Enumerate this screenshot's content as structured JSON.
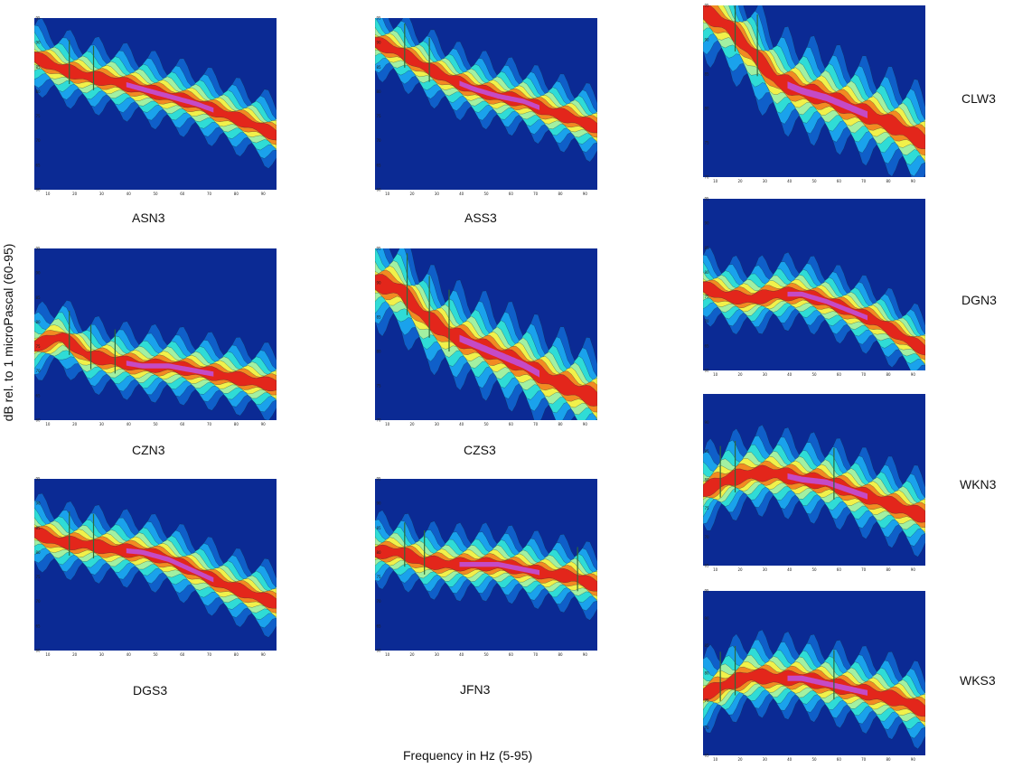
{
  "figure": {
    "ylabel": "dB rel. to 1 microPascal (60-95)",
    "xlabel": "Frequency in Hz (5-95)"
  },
  "chart_data": [
    {
      "type": "heatmap",
      "station": "ASN3",
      "x": [
        10,
        20,
        30,
        40,
        50,
        60,
        70,
        80,
        90
      ],
      "yticks": [
        60,
        65,
        70,
        75,
        80,
        85,
        90,
        95
      ],
      "xlim": [
        5,
        95
      ],
      "ylim": [
        60,
        95
      ],
      "series": [
        {
          "name": "ASN3",
          "x": [
            5,
            15,
            25,
            35,
            45,
            55,
            65,
            75,
            85,
            95
          ],
          "values": [
            87,
            84.5,
            83,
            82,
            80.5,
            79,
            77.5,
            75.5,
            73.5,
            71
          ]
        }
      ],
      "peaks": [
        18,
        27
      ]
    },
    {
      "type": "heatmap",
      "station": "ASS3",
      "x": [
        10,
        20,
        30,
        40,
        50,
        60,
        70,
        80,
        90
      ],
      "yticks": [
        60,
        65,
        70,
        75,
        80,
        85,
        90,
        95
      ],
      "xlim": [
        5,
        95
      ],
      "ylim": [
        60,
        95
      ],
      "series": [
        {
          "name": "ASS3",
          "x": [
            5,
            15,
            25,
            35,
            45,
            55,
            65,
            75,
            85,
            95
          ],
          "values": [
            90,
            88,
            85,
            82.5,
            80.5,
            79,
            78,
            76,
            74.5,
            72.5
          ]
        }
      ],
      "peaks": [
        17,
        27
      ]
    },
    {
      "type": "heatmap",
      "station": "CLW3",
      "x": [
        10,
        20,
        30,
        40,
        50,
        60,
        70,
        80,
        90
      ],
      "yticks": [
        70,
        75,
        80,
        85,
        90,
        95
      ],
      "xlim": [
        5,
        95
      ],
      "ylim": [
        70,
        95
      ],
      "series": [
        {
          "name": "CLW3",
          "x": [
            5,
            15,
            25,
            35,
            45,
            55,
            65,
            75,
            85,
            95
          ],
          "values": [
            94,
            92,
            88,
            84,
            82.5,
            81.5,
            80,
            78.5,
            77,
            75
          ]
        }
      ],
      "peaks": [
        18,
        27
      ]
    },
    {
      "type": "heatmap",
      "station": "CZN3",
      "x": [
        10,
        20,
        30,
        40,
        50,
        60,
        70,
        80,
        90
      ],
      "yticks": [
        60,
        65,
        70,
        75,
        80,
        85,
        90,
        95
      ],
      "xlim": [
        5,
        95
      ],
      "ylim": [
        60,
        95
      ],
      "series": [
        {
          "name": "CZN3",
          "x": [
            5,
            15,
            25,
            35,
            45,
            55,
            65,
            75,
            85,
            95
          ],
          "values": [
            75,
            77,
            73,
            72,
            71,
            71,
            70,
            69,
            68,
            67
          ]
        }
      ],
      "peaks": [
        18,
        26,
        35
      ]
    },
    {
      "type": "heatmap",
      "station": "CZS3",
      "x": [
        10,
        20,
        30,
        40,
        50,
        60,
        70,
        80,
        90
      ],
      "yticks": [
        70,
        75,
        80,
        85,
        90,
        95
      ],
      "xlim": [
        5,
        95
      ],
      "ylim": [
        70,
        95
      ],
      "series": [
        {
          "name": "CZS3",
          "x": [
            5,
            15,
            25,
            35,
            45,
            55,
            65,
            75,
            85,
            95
          ],
          "values": [
            90,
            89,
            85,
            82.5,
            81,
            79.5,
            78,
            76,
            74.5,
            73
          ]
        }
      ],
      "peaks": [
        18,
        27,
        35
      ]
    },
    {
      "type": "heatmap",
      "station": "DGN3",
      "x": [
        10,
        20,
        30,
        40,
        50,
        60,
        70,
        80,
        90
      ],
      "yticks": [
        60,
        65,
        70,
        75,
        80,
        85,
        90,
        95
      ],
      "xlim": [
        5,
        95
      ],
      "ylim": [
        60,
        95
      ],
      "series": [
        {
          "name": "DGN3",
          "x": [
            5,
            15,
            25,
            35,
            45,
            55,
            65,
            75,
            85,
            95
          ],
          "values": [
            77,
            75,
            74.5,
            75.5,
            75.5,
            74,
            72,
            70,
            67,
            64
          ]
        }
      ],
      "peaks": []
    },
    {
      "type": "heatmap",
      "station": "DGS3",
      "x": [
        10,
        20,
        30,
        40,
        50,
        60,
        70,
        80,
        90
      ],
      "yticks": [
        60,
        65,
        70,
        75,
        80,
        85,
        90,
        95
      ],
      "xlim": [
        5,
        95
      ],
      "ylim": [
        60,
        95
      ],
      "series": [
        {
          "name": "DGS3",
          "x": [
            5,
            15,
            25,
            35,
            45,
            55,
            65,
            75,
            85,
            95
          ],
          "values": [
            84,
            82,
            81.5,
            80.5,
            80,
            78.5,
            76,
            73.5,
            71.5,
            69.5
          ]
        }
      ],
      "peaks": [
        18,
        27
      ]
    },
    {
      "type": "heatmap",
      "station": "JFN3",
      "x": [
        10,
        20,
        30,
        40,
        50,
        60,
        70,
        80,
        90
      ],
      "yticks": [
        60,
        65,
        70,
        75,
        80,
        85,
        90,
        95
      ],
      "xlim": [
        5,
        95
      ],
      "ylim": [
        60,
        95
      ],
      "series": [
        {
          "name": "JFN3",
          "x": [
            5,
            15,
            25,
            35,
            45,
            55,
            65,
            75,
            85,
            95
          ],
          "values": [
            80,
            80,
            78,
            77.5,
            77.5,
            77.5,
            76.5,
            75.5,
            75,
            73
          ]
        }
      ],
      "peaks": [
        17,
        25,
        87
      ]
    },
    {
      "type": "heatmap",
      "station": "WKN3",
      "x": [
        10,
        20,
        30,
        40,
        50,
        60,
        70,
        80,
        90
      ],
      "yticks": [
        65,
        70,
        75,
        80,
        85,
        90
      ],
      "xlim": [
        5,
        95
      ],
      "ylim": [
        65,
        95
      ],
      "series": [
        {
          "name": "WKN3",
          "x": [
            5,
            15,
            25,
            35,
            45,
            55,
            65,
            75,
            85,
            95
          ],
          "values": [
            78,
            80,
            81,
            81,
            80,
            79.5,
            78,
            76.5,
            75,
            73.5
          ]
        }
      ],
      "peaks": [
        12,
        18,
        58
      ]
    },
    {
      "type": "heatmap",
      "station": "WKS3",
      "x": [
        10,
        20,
        30,
        40,
        50,
        60,
        70,
        80,
        90
      ],
      "yticks": [
        65,
        70,
        75,
        80,
        85,
        90,
        95
      ],
      "xlim": [
        5,
        95
      ],
      "ylim": [
        65,
        95
      ],
      "series": [
        {
          "name": "WKS3",
          "x": [
            5,
            15,
            25,
            35,
            45,
            55,
            65,
            75,
            85,
            95
          ],
          "values": [
            76,
            78,
            79.5,
            79,
            79,
            78,
            77,
            76,
            75,
            73
          ]
        }
      ],
      "peaks": [
        12,
        18,
        58
      ]
    }
  ]
}
